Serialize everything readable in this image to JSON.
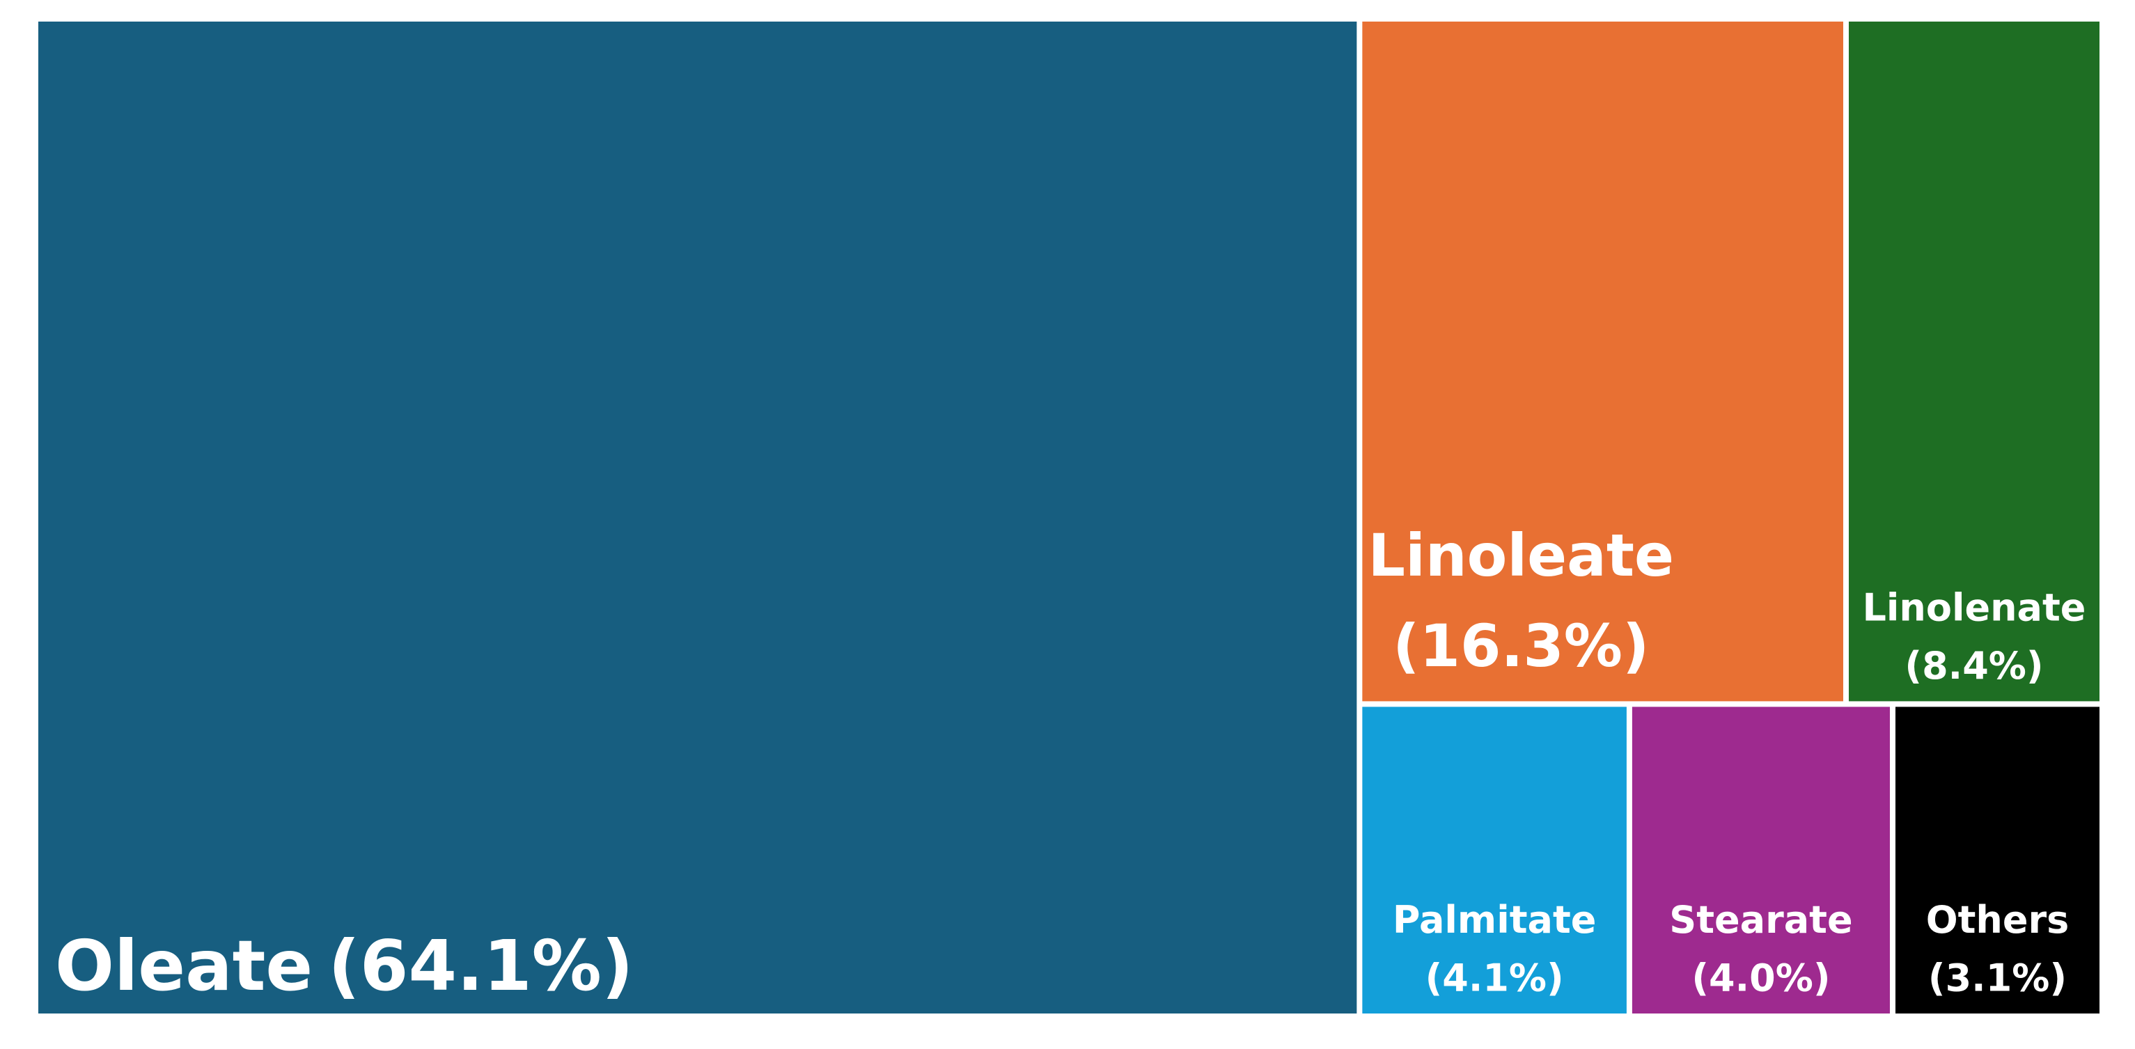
{
  "chart_data": {
    "type": "treemap",
    "categories": [
      "Oleate",
      "Linoleate",
      "Linolenate",
      "Palmitate",
      "Stearate",
      "Others"
    ],
    "values": [
      64.1,
      16.3,
      8.4,
      4.1,
      4.0,
      3.1
    ],
    "value_labels": [
      "(64.1%)",
      "(16.3%)",
      "(8.4%)",
      "(4.1%)",
      "(4.0%)",
      "(3.1%)"
    ],
    "colors": [
      "#175e80",
      "#e87033",
      "#1e6e23",
      "#139fd9",
      "#9e2a8f",
      "#000000"
    ]
  }
}
